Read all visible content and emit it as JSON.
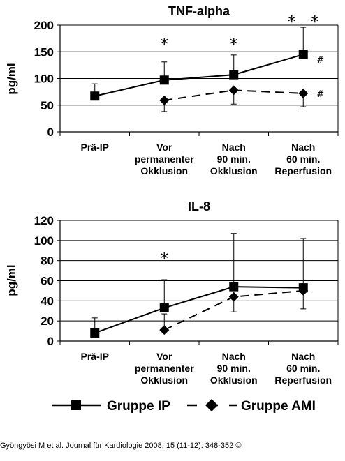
{
  "chart_data": [
    {
      "type": "line",
      "title": "TNF-alpha",
      "ylabel": "pg/ml",
      "ylim": [
        0,
        200
      ],
      "yticks": [
        "0",
        "50",
        "100",
        "150",
        "200"
      ],
      "categories": [
        [
          "Prä-IP"
        ],
        [
          "Vor",
          "permanenter",
          "Okklusion"
        ],
        [
          "Nach",
          "90 min.",
          "Okklusion"
        ],
        [
          "Nach",
          "60 min.",
          "Reperfusion"
        ]
      ],
      "series": [
        {
          "name": "Gruppe IP",
          "values": [
            67,
            97,
            107,
            145
          ],
          "error_upper": [
            90,
            131,
            144,
            196
          ],
          "error_lower": [
            null,
            null,
            null,
            null
          ]
        },
        {
          "name": "Gruppe AMI",
          "values": [
            null,
            59,
            78,
            72
          ],
          "error_upper": [
            null,
            null,
            null,
            null
          ],
          "error_lower": [
            null,
            38,
            52,
            47
          ]
        }
      ],
      "annotations": [
        {
          "text": "*",
          "category": 1,
          "y": 170
        },
        {
          "text": "*",
          "category": 2,
          "y": 170
        },
        {
          "text": "* *",
          "category": 3,
          "y": 212
        },
        {
          "text": "#",
          "category": 3,
          "y": 136,
          "side": "right"
        },
        {
          "text": "#",
          "category": 3,
          "y": 72,
          "side": "right"
        }
      ]
    },
    {
      "type": "line",
      "title": "IL-8",
      "ylabel": "pg/ml",
      "ylim": [
        0,
        120
      ],
      "yticks": [
        "0",
        "20",
        "40",
        "60",
        "80",
        "100",
        "120"
      ],
      "categories": [
        [
          "Prä-IP"
        ],
        [
          "Vor",
          "permanenter",
          "Okklusion"
        ],
        [
          "Nach",
          "90 min.",
          "Okklusion"
        ],
        [
          "Nach",
          "60 min.",
          "Reperfusion"
        ]
      ],
      "series": [
        {
          "name": "Gruppe IP",
          "values": [
            8,
            33,
            54,
            53
          ],
          "error_upper": [
            23,
            61,
            107,
            102
          ],
          "error_lower": [
            null,
            null,
            null,
            null
          ]
        },
        {
          "name": "Gruppe AMI",
          "values": [
            null,
            11,
            44,
            50
          ],
          "error_upper": [
            null,
            27,
            null,
            null
          ],
          "error_lower": [
            null,
            null,
            29,
            32
          ]
        }
      ],
      "annotations": [
        {
          "text": "*",
          "category": 1,
          "y": 85
        }
      ]
    }
  ],
  "legend": {
    "ip_label": "Gruppe IP",
    "ami_label": "Gruppe AMI"
  },
  "citation": "Gyöngyösi M et al. Journal für Kardiologie 2008; 15 (11-12): 348-352 ©"
}
